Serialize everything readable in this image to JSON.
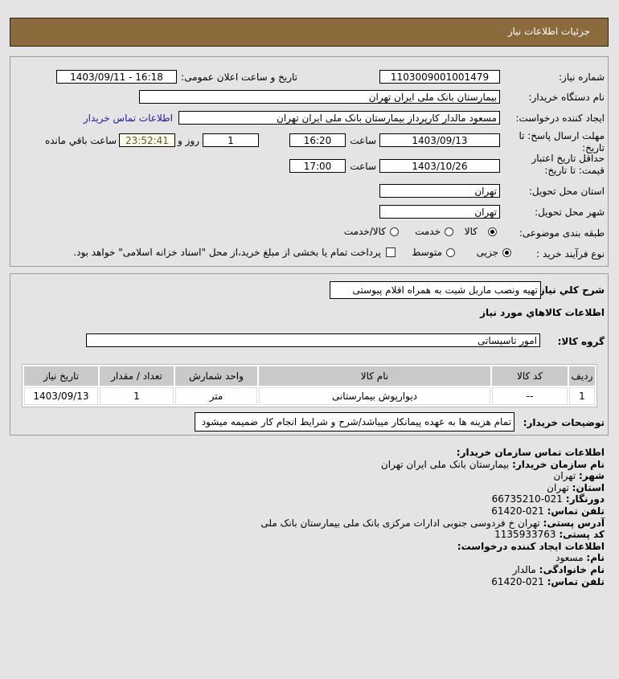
{
  "header": {
    "title": "جزئیات اطلاعات نیاز"
  },
  "form": {
    "need_number_label": "شماره نیاز:",
    "need_number": "1103009001001479",
    "announce_label": "تاریخ و ساعت اعلان عمومی:",
    "announce_value": "1403/09/11 - 16:18",
    "buyer_label": "نام دستگاه خریدار:",
    "buyer": "بیمارستان بانک ملی ایران تهران",
    "creator_label": "ایجاد کننده درخواست:",
    "creator": "مسعود مالدار کارپرداز بیمارستان بانک ملی ایران تهران",
    "contact_link": "اطلاعات تماس خریدار",
    "deadline_label_1": "مهلت ارسال پاسخ: تا",
    "deadline_label_2": "تاریخ:",
    "deadline_date": "1403/09/13",
    "time_label": "ساعت",
    "deadline_time": "16:20",
    "days": "1",
    "days_label": "روز و",
    "remaining": "23:52:41",
    "remaining_label": "ساعت باقي مانده",
    "validity_label_1": "حداقل تاریخ اعتبار",
    "validity_label_2": "قیمت: تا تاریخ:",
    "validity_date": "1403/10/26",
    "validity_time": "17:00",
    "province_label": "استان محل تحویل:",
    "province": "تهران",
    "city_label": "شهر محل تحویل:",
    "city": "تهران",
    "category_label": "طبقه بندی موضوعی:",
    "category_options": [
      "کالا",
      "خدمت",
      "کالا/خدمت"
    ],
    "category_selected": "کالا",
    "process_label": "نوع فرآیند خرید :",
    "process_options": [
      "جزیی",
      "متوسط"
    ],
    "process_selected": "جزیی",
    "payment_note": "پرداخت تمام یا بخشی از مبلغ خرید،از محل \"اسناد خزانه اسلامی\" خواهد بود."
  },
  "details": {
    "summary_label": "شرح کلي نیاز:",
    "summary": "تهیه ونصب ماربل شیت به همراه اقلام پیوستی",
    "goods_title": "اطلاعات کالاهاي مورد نیاز",
    "group_label": "گروه کالا:",
    "group": "امور تاسیساتی",
    "table": {
      "headers": [
        "ردیف",
        "کد کالا",
        "نام کالا",
        "واحد شمارش",
        "تعداد / مقدار",
        "تاریخ نیاز"
      ],
      "rows": [
        [
          "1",
          "--",
          "دیوارپوش بیمارستانی",
          "متر",
          "1",
          "1403/09/13"
        ]
      ]
    },
    "buyer_notes_label": "توضیحات خریدار:",
    "buyer_notes": "تمام هزینه ها به عهده پیمانکار میباشد/شرح و شرایط انجام کار ضمیمه میشود"
  },
  "contact": {
    "title": "اطلاعات تماس سازمان خریدار:",
    "org_label": "نام سازمان خریدار:",
    "org": "بیمارستان بانک ملی ایران تهران",
    "city_label": "شهر:",
    "city": "تهران",
    "province_label": "استان:",
    "province": "تهران",
    "fax_label": "دورنگار:",
    "fax": "021-66735210",
    "phone_label": "تلفن تماس:",
    "phone": "021-61420",
    "address_label": "آدرس پستی:",
    "address": "تهران خ فردوسی جنوبی ادارات مرکزی بانک ملی بیمارستان بانک ملی",
    "postal_label": "کد پستی:",
    "postal": "1135933763",
    "creator_title": "اطلاعات ایجاد کننده درخواست:",
    "name_label": "نام:",
    "name": "مسعود",
    "family_label": "نام خانوادگی:",
    "family": "مالدار",
    "creator_phone_label": "تلفن تماس:",
    "creator_phone": "021-61420"
  }
}
